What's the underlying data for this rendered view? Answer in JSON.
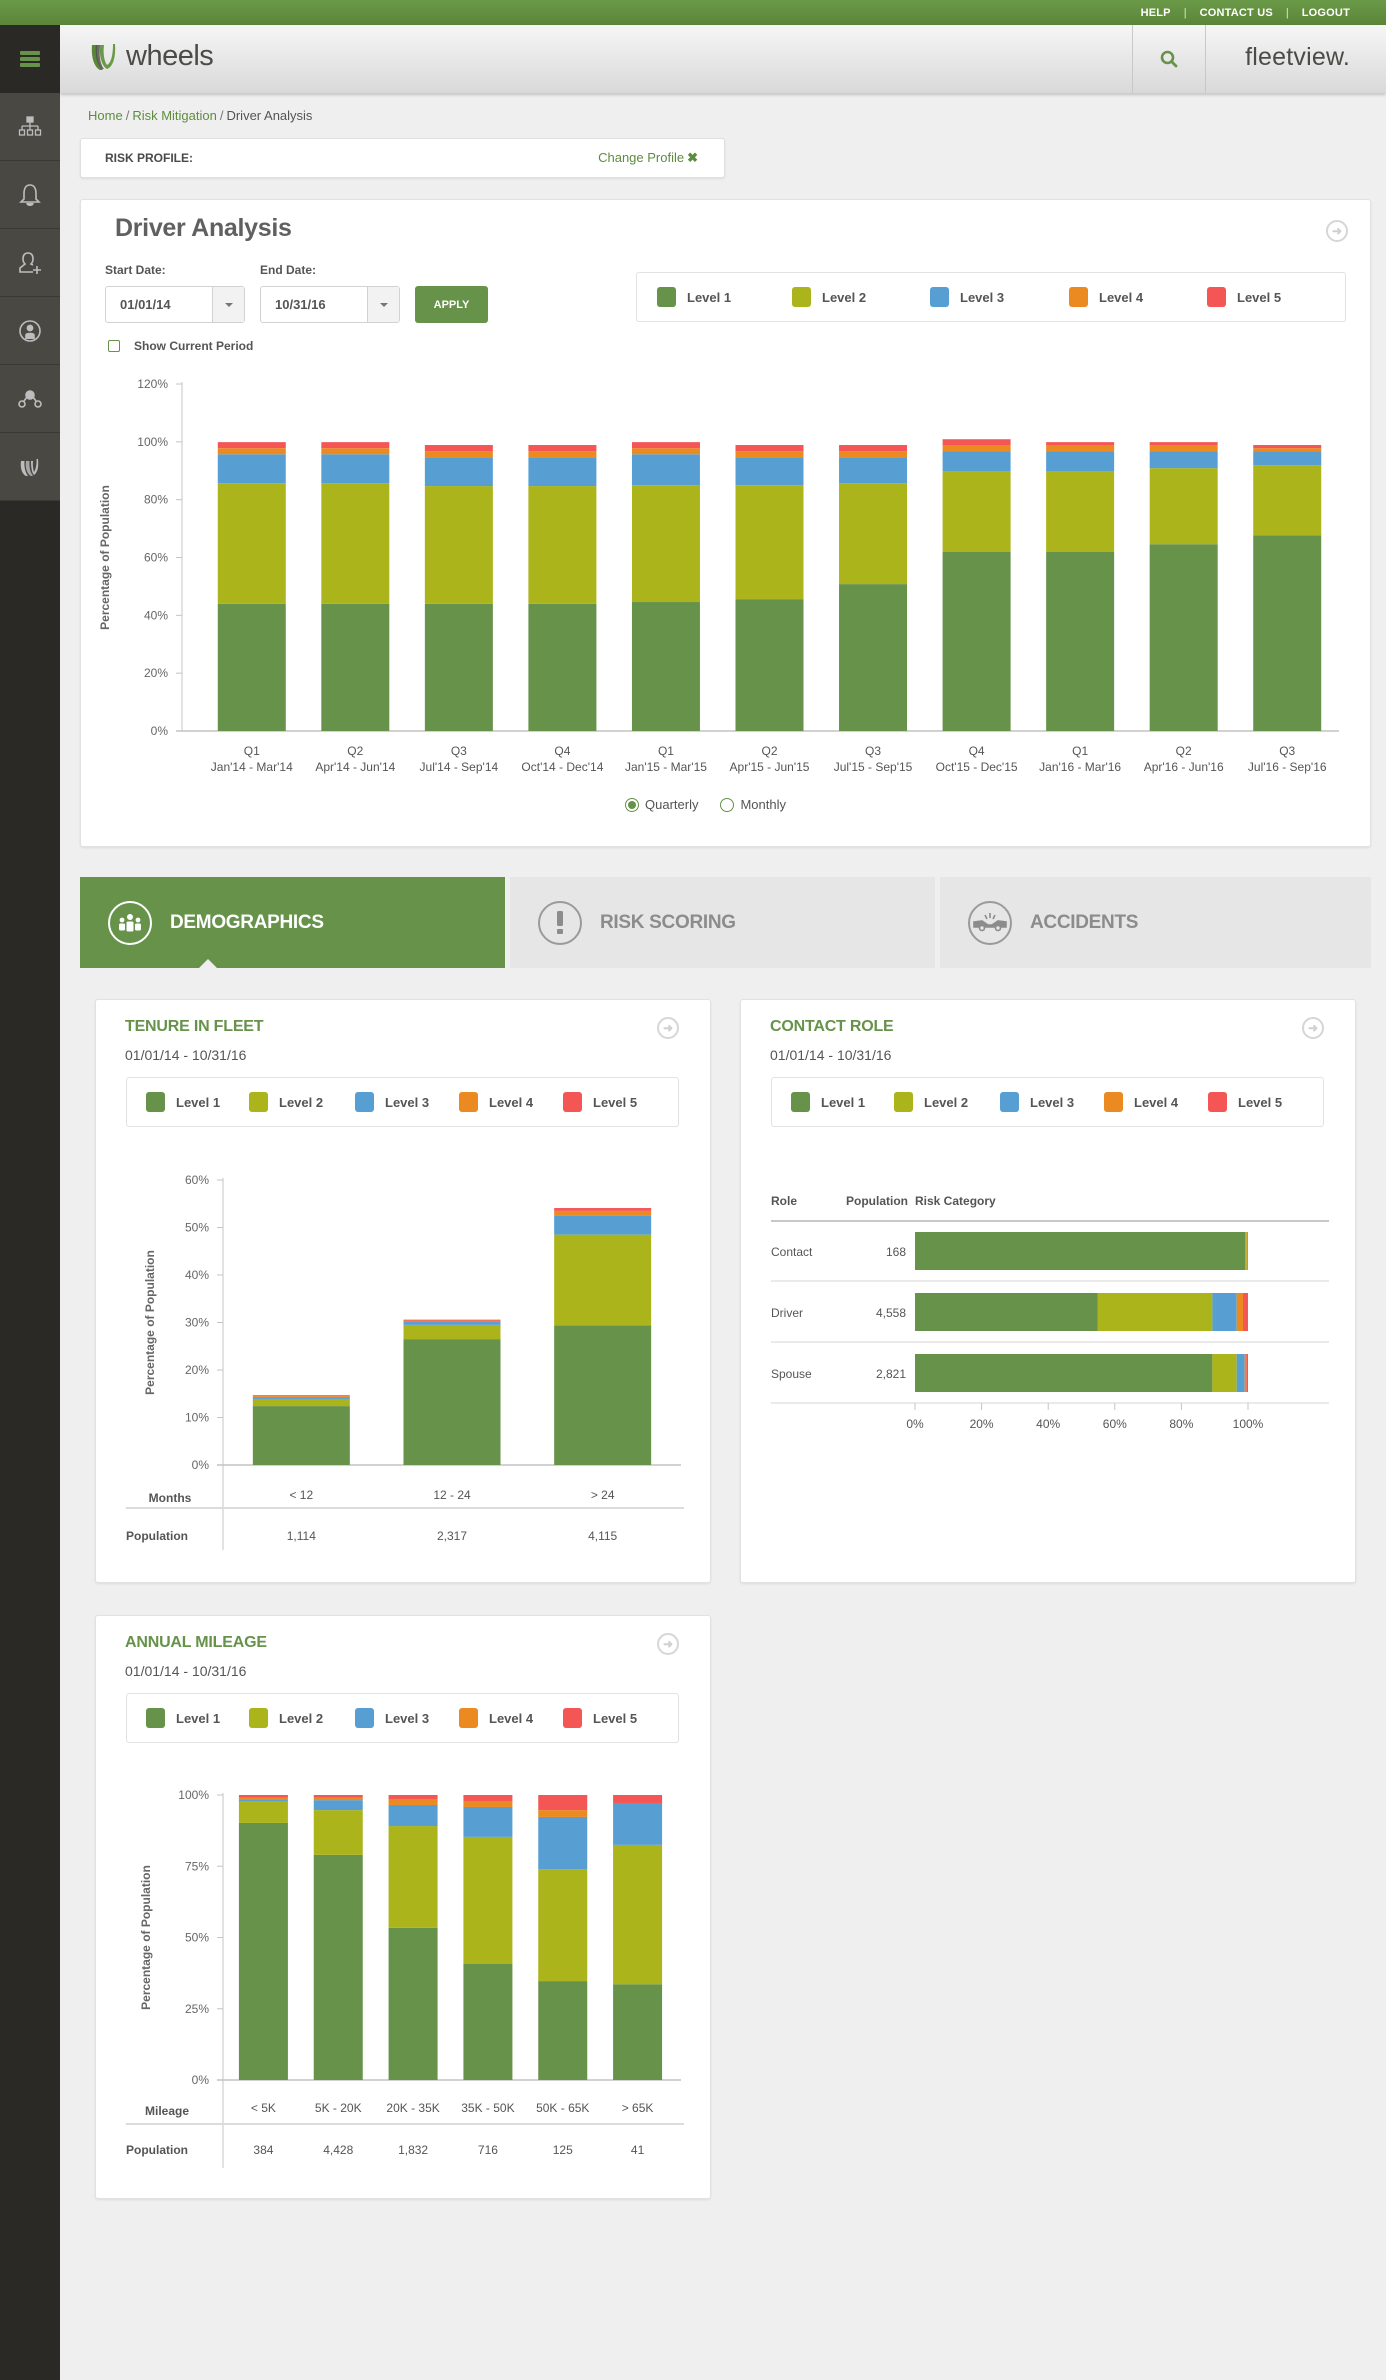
{
  "topbar": {
    "links": [
      "HELP",
      "CONTACT US",
      "LOGOUT"
    ]
  },
  "header": {
    "brand": "wheels",
    "product": "fleetview."
  },
  "sidebar": {
    "items": [
      {
        "icon": "menu-icon"
      },
      {
        "icon": "org-chart-icon"
      },
      {
        "icon": "bell-icon"
      },
      {
        "icon": "add-user-icon"
      },
      {
        "icon": "driver-icon"
      },
      {
        "icon": "network-icon"
      },
      {
        "icon": "wheels-logo-icon"
      }
    ]
  },
  "breadcrumb": {
    "items": [
      "Home",
      "Risk Mitigation",
      "Driver Analysis"
    ]
  },
  "risk_profile": {
    "label": "RISK PROFILE:",
    "change_label": "Change Profile",
    "change_icon": "✖"
  },
  "colors": {
    "level1": "#66924a",
    "level2": "#abb41a",
    "level3": "#579fd3",
    "level4": "#ec8a22",
    "level5": "#f45656",
    "accent": "#66924a"
  },
  "driver_analysis": {
    "title": "Driver Analysis",
    "start_label": "Start Date:",
    "start_value": "01/01/14",
    "end_label": "End Date:",
    "end_value": "10/31/16",
    "apply_label": "APPLY",
    "show_current_label": "Show Current Period",
    "show_current_checked": false,
    "legend": [
      "Level 1",
      "Level 2",
      "Level 3",
      "Level 4",
      "Level 5"
    ],
    "period_options": [
      {
        "label": "Quarterly",
        "selected": true
      },
      {
        "label": "Monthly",
        "selected": false
      }
    ]
  },
  "tabs": [
    {
      "label": "DEMOGRAPHICS",
      "active": true,
      "icon": "group-icon"
    },
    {
      "label": "RISK SCORING",
      "active": false,
      "icon": "exclamation-icon"
    },
    {
      "label": "ACCIDENTS",
      "active": false,
      "icon": "car-crash-icon"
    }
  ],
  "tenure": {
    "title": "TENURE IN FLEET",
    "date_range": "01/01/14 - 10/31/16",
    "legend": [
      "Level 1",
      "Level 2",
      "Level 3",
      "Level 4",
      "Level 5"
    ],
    "row_label_category": "Months",
    "row_label_population": "Population",
    "population": [
      "1,114",
      "2,317",
      "4,115"
    ]
  },
  "contact_role": {
    "title": "CONTACT ROLE",
    "date_range": "01/01/14 - 10/31/16",
    "legend": [
      "Level 1",
      "Level 2",
      "Level 3",
      "Level 4",
      "Level 5"
    ],
    "columns": [
      "Role",
      "Population",
      "Risk Category"
    ]
  },
  "mileage": {
    "title": "ANNUAL MILEAGE",
    "date_range": "01/01/14 - 10/31/16",
    "legend": [
      "Level 1",
      "Level 2",
      "Level 3",
      "Level 4",
      "Level 5"
    ],
    "row_label_category": "Mileage",
    "row_label_population": "Population",
    "population": [
      "384",
      "4,428",
      "1,832",
      "716",
      "125",
      "41"
    ]
  },
  "chart_data": [
    {
      "id": "driver-analysis",
      "type": "bar",
      "stacked": true,
      "title": "Driver Analysis",
      "xlabel": "",
      "ylabel": "Percentage of Population",
      "ylim": [
        0,
        120
      ],
      "yticks": [
        "0%",
        "20%",
        "40%",
        "60%",
        "80%",
        "100%",
        "120%"
      ],
      "ytick_values": [
        0,
        20,
        40,
        60,
        80,
        100,
        120
      ],
      "categories": [
        "Q1",
        "Q2",
        "Q3",
        "Q4",
        "Q1",
        "Q2",
        "Q3",
        "Q4",
        "Q1",
        "Q2",
        "Q3"
      ],
      "category_sublabels": [
        "Jan'14 - Mar'14",
        "Apr'14 - Jun'14",
        "Jul'14 - Sep'14",
        "Oct'14 - Dec'14",
        "Jan'15 - Mar'15",
        "Apr'15 - Jun'15",
        "Jul'15 - Sep'15",
        "Oct'15 - Dec'15",
        "Jan'16 - Mar'16",
        "Apr'16 - Jun'16",
        "Jul'16 - Sep'16"
      ],
      "legend_position": "top-right",
      "grid": false,
      "series": [
        {
          "name": "Level 1",
          "values": [
            44,
            44,
            44,
            44,
            44.6,
            45.6,
            50.8,
            61.9,
            61.9,
            64.6,
            67.7
          ]
        },
        {
          "name": "Level 2",
          "values": [
            41.7,
            41.7,
            40.7,
            40.7,
            40.4,
            39.4,
            34.9,
            28.0,
            28.0,
            26.3,
            24.2
          ]
        },
        {
          "name": "Level 3",
          "values": [
            10,
            10,
            10,
            10,
            10.7,
            9.7,
            9.0,
            6.9,
            6.9,
            5.9,
            4.9
          ]
        },
        {
          "name": "Level 4",
          "values": [
            2.1,
            2.1,
            2.1,
            2.1,
            2.1,
            2.1,
            2.1,
            2.1,
            2.1,
            2.1,
            1.0
          ]
        },
        {
          "name": "Level 5",
          "values": [
            2.1,
            2.1,
            2.1,
            2.1,
            2.1,
            2.1,
            2.1,
            2.0,
            1.0,
            1.0,
            1.1
          ]
        }
      ]
    },
    {
      "id": "tenure",
      "type": "bar",
      "stacked": true,
      "title": "TENURE IN FLEET",
      "xlabel": "Months",
      "ylabel": "Percentage of Population",
      "ylim": [
        0,
        60
      ],
      "yticks": [
        "0%",
        "10%",
        "20%",
        "30%",
        "40%",
        "50%",
        "60%"
      ],
      "ytick_values": [
        0,
        10,
        20,
        30,
        40,
        50,
        60
      ],
      "categories": [
        "< 12",
        "12 - 24",
        "> 24"
      ],
      "series": [
        {
          "name": "Level 1",
          "values": [
            12.4,
            26.5,
            29.4
          ]
        },
        {
          "name": "Level 2",
          "values": [
            1.5,
            3.0,
            19.1
          ]
        },
        {
          "name": "Level 3",
          "values": [
            0.4,
            0.6,
            4.0
          ]
        },
        {
          "name": "Level 4",
          "values": [
            0.2,
            0.3,
            1.0
          ]
        },
        {
          "name": "Level 5",
          "values": [
            0.2,
            0.2,
            0.6
          ]
        }
      ]
    },
    {
      "id": "contact-role",
      "type": "bar",
      "orientation": "horizontal",
      "stacked": true,
      "title": "CONTACT ROLE",
      "xlim": [
        0,
        100
      ],
      "xticks": [
        "0%",
        "20%",
        "40%",
        "60%",
        "80%",
        "100%"
      ],
      "xtick_values": [
        0,
        20,
        40,
        60,
        80,
        100
      ],
      "categories": [
        "Contact",
        "Driver",
        "Spouse"
      ],
      "population": [
        "168",
        "4,558",
        "2,821"
      ],
      "series": [
        {
          "name": "Level 1",
          "values": [
            99.2,
            54.8,
            89.3
          ]
        },
        {
          "name": "Level 2",
          "values": [
            0.4,
            34.5,
            7.3
          ]
        },
        {
          "name": "Level 3",
          "values": [
            0,
            7.3,
            2.4
          ]
        },
        {
          "name": "Level 4",
          "values": [
            0.4,
            1.9,
            0.5
          ]
        },
        {
          "name": "Level 5",
          "values": [
            0,
            1.5,
            0.5
          ]
        }
      ]
    },
    {
      "id": "mileage",
      "type": "bar",
      "stacked": true,
      "title": "ANNUAL MILEAGE",
      "xlabel": "Mileage",
      "ylabel": "Percentage of Population",
      "ylim": [
        0,
        100
      ],
      "yticks": [
        "0%",
        "25%",
        "50%",
        "75%",
        "100%"
      ],
      "ytick_values": [
        0,
        25,
        50,
        75,
        100
      ],
      "categories": [
        "< 5K",
        "5K - 20K",
        "20K - 35K",
        "35K - 50K",
        "50K - 65K",
        "> 65K"
      ],
      "series": [
        {
          "name": "Level 1",
          "values": [
            90.2,
            79.0,
            53.4,
            40.7,
            34.7,
            33.6
          ]
        },
        {
          "name": "Level 2",
          "values": [
            7.7,
            15.7,
            35.7,
            44.6,
            39.3,
            48.9
          ]
        },
        {
          "name": "Level 3",
          "values": [
            0.5,
            3.5,
            7.4,
            10.5,
            18.3,
            14.7
          ]
        },
        {
          "name": "Level 4",
          "values": [
            0.7,
            0.9,
            2.1,
            2.1,
            2.4,
            0
          ]
        },
        {
          "name": "Level 5",
          "values": [
            0.9,
            0.9,
            1.4,
            2.1,
            5.3,
            2.8
          ]
        }
      ]
    }
  ]
}
